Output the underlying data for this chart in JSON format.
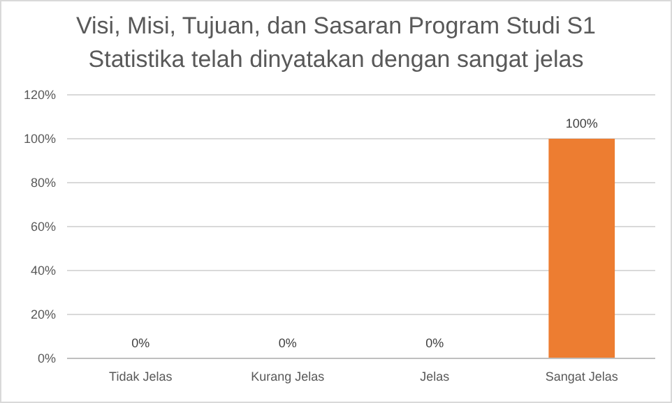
{
  "chart_data": {
    "type": "bar",
    "title": "Visi, Misi, Tujuan, dan Sasaran Program Studi S1\nStatistika telah dinyatakan dengan sangat jelas",
    "categories": [
      "Tidak Jelas",
      "Kurang Jelas",
      "Jelas",
      "Sangat Jelas"
    ],
    "values": [
      0,
      0,
      0,
      100
    ],
    "colors": [
      "#ed7d31",
      "#ed7d31",
      "#ed7d31",
      "#ed7d31"
    ],
    "value_labels": [
      "0%",
      "0%",
      "0%",
      "100%"
    ],
    "ylim": [
      0,
      120
    ],
    "yticks": [
      {
        "value": 0,
        "label": "0%"
      },
      {
        "value": 20,
        "label": "20%"
      },
      {
        "value": 40,
        "label": "40%"
      },
      {
        "value": 60,
        "label": "60%"
      },
      {
        "value": 80,
        "label": "80%"
      },
      {
        "value": 100,
        "label": "100%"
      },
      {
        "value": 120,
        "label": "120%"
      }
    ],
    "grid": "y"
  }
}
